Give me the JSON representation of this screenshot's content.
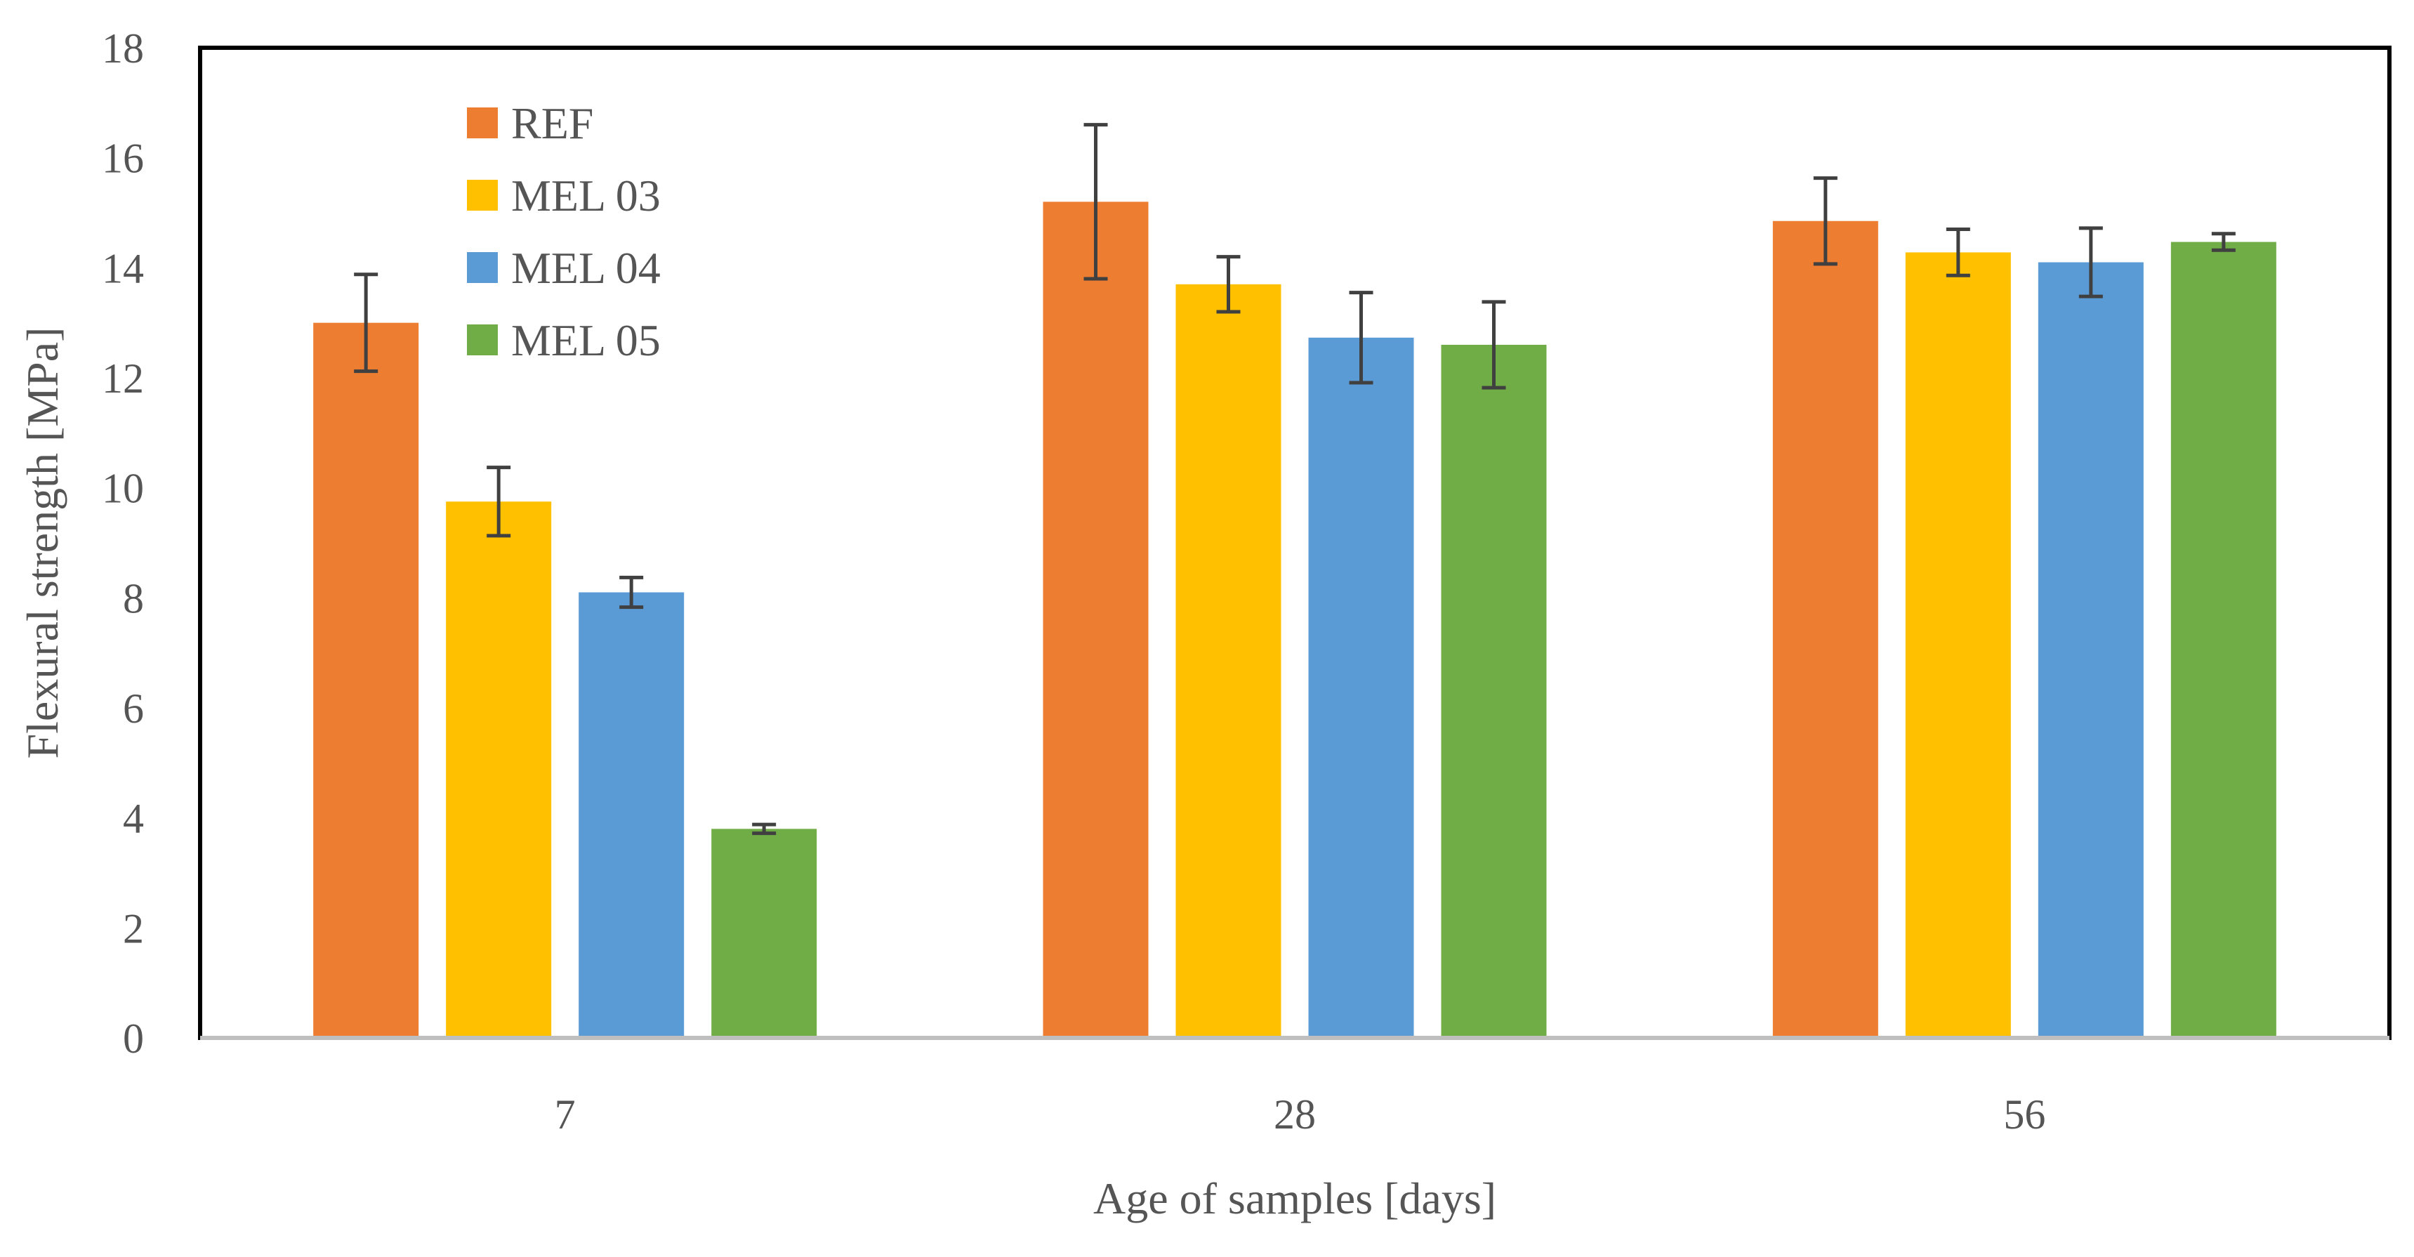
{
  "chart_data": {
    "type": "bar",
    "title": "",
    "xlabel": "Age of samples [days]",
    "ylabel": "Flexural strength [MPa]",
    "ylim": [
      0,
      18
    ],
    "yticks": [
      "0",
      "2",
      "4",
      "6",
      "8",
      "10",
      "12",
      "14",
      "16",
      "18"
    ],
    "categories": [
      "7",
      "28",
      "56"
    ],
    "grid": false,
    "legend_position": "top-left",
    "series": [
      {
        "name": "REF",
        "color": "#ED7D31",
        "values": [
          13.0,
          15.2,
          14.85
        ],
        "errors": [
          0.88,
          1.4,
          0.78
        ]
      },
      {
        "name": "MEL 03",
        "color": "#FFC000",
        "values": [
          9.75,
          13.7,
          14.28
        ],
        "errors": [
          0.62,
          0.5,
          0.42
        ]
      },
      {
        "name": "MEL 04",
        "color": "#5B9BD5",
        "values": [
          8.1,
          12.73,
          14.1
        ],
        "errors": [
          0.27,
          0.82,
          0.62
        ]
      },
      {
        "name": "MEL 05",
        "color": "#70AD47",
        "values": [
          3.8,
          12.6,
          14.47
        ],
        "errors": [
          0.08,
          0.78,
          0.15
        ]
      }
    ]
  }
}
